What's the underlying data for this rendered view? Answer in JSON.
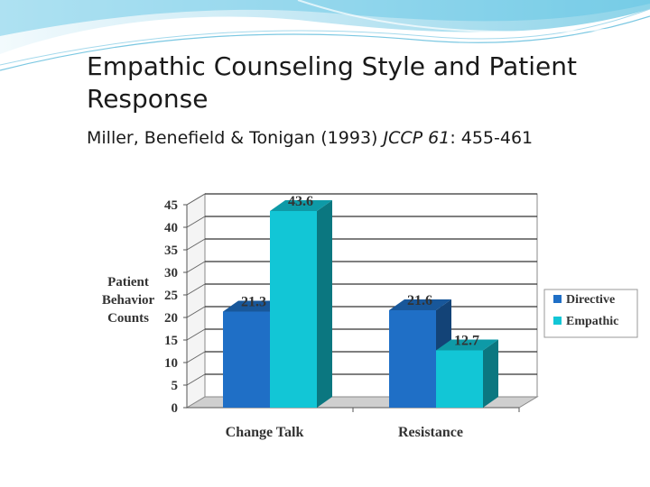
{
  "slide": {
    "title": "Empathic Counseling Style and Patient Response",
    "citation_authors": "Miller, Benefield & Tonigan (1993)",
    "citation_journal": "JCCP 61",
    "citation_pages": ": 455-461"
  },
  "chart_data": {
    "type": "bar",
    "categories": [
      "Change Talk",
      "Resistance"
    ],
    "series": [
      {
        "name": "Directive",
        "values": [
          21.3,
          21.6
        ],
        "color": "#1f6fc6"
      },
      {
        "name": "Empathic",
        "values": [
          43.6,
          12.7
        ],
        "color": "#12c6d6"
      }
    ],
    "ylabel": "Patient Behavior Counts",
    "ylabel_lines": [
      "Patient",
      "Behavior",
      "Counts"
    ],
    "yticks": [
      0,
      5,
      10,
      15,
      20,
      25,
      30,
      35,
      40,
      45
    ],
    "ylim": [
      0,
      45
    ],
    "grid": true,
    "legend": "right",
    "data_labels": true,
    "style": "3d"
  }
}
